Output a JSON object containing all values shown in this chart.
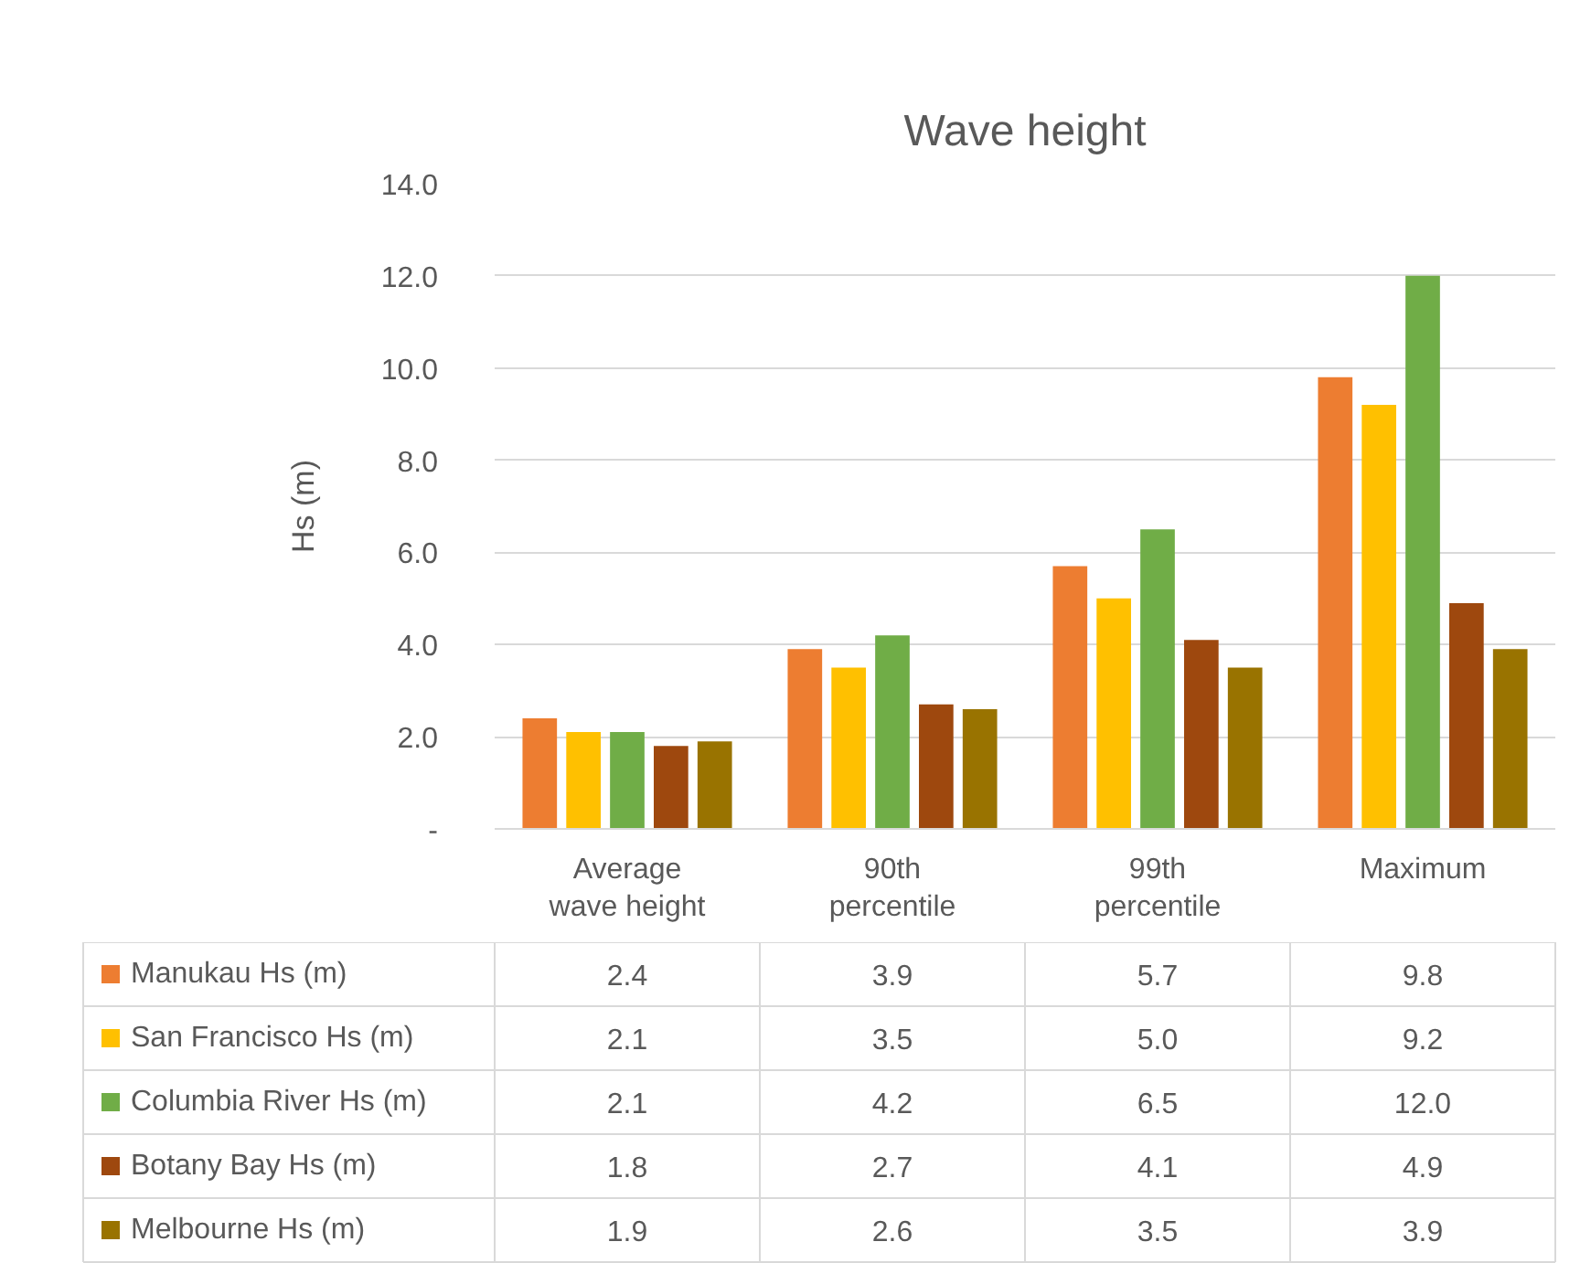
{
  "chart_data": {
    "type": "bar",
    "title": "Wave height",
    "ylabel": "Hs (m)",
    "categories": [
      "Average wave height",
      "90th percentile",
      "99th percentile",
      "Maximum"
    ],
    "series": [
      {
        "name": "Manukau Hs (m)",
        "color": "#ed7d31",
        "values": [
          2.4,
          3.9,
          5.7,
          9.8
        ],
        "value_labels": [
          "2.4",
          "3.9",
          "5.7",
          "9.8"
        ]
      },
      {
        "name": "San Francisco Hs (m)",
        "color": "#ffc000",
        "values": [
          2.1,
          3.5,
          5.0,
          9.2
        ],
        "value_labels": [
          "2.1",
          "3.5",
          "5.0",
          "9.2"
        ]
      },
      {
        "name": "Columbia River Hs (m)",
        "color": "#70ad47",
        "values": [
          2.1,
          4.2,
          6.5,
          12.0
        ],
        "value_labels": [
          "2.1",
          "4.2",
          "6.5",
          "12.0"
        ]
      },
      {
        "name": "Botany Bay Hs (m)",
        "color": "#9e480e",
        "values": [
          1.8,
          2.7,
          4.1,
          4.9
        ],
        "value_labels": [
          "1.8",
          "2.7",
          "4.1",
          "4.9"
        ]
      },
      {
        "name": "Melbourne Hs (m)",
        "color": "#997300",
        "values": [
          1.9,
          2.6,
          3.5,
          3.9
        ],
        "value_labels": [
          "1.9",
          "2.6",
          "3.5",
          "3.9"
        ]
      }
    ],
    "ylim": [
      0,
      14
    ],
    "yticks": [
      {
        "value": 0,
        "label": "-"
      },
      {
        "value": 2,
        "label": "2.0"
      },
      {
        "value": 4,
        "label": "4.0"
      },
      {
        "value": 6,
        "label": "6.0"
      },
      {
        "value": 8,
        "label": "8.0"
      },
      {
        "value": 10,
        "label": "10.0"
      },
      {
        "value": 12,
        "label": "12.0"
      },
      {
        "value": 14,
        "label": "14.0"
      }
    ],
    "grid": "y",
    "legend": "bottom left"
  }
}
